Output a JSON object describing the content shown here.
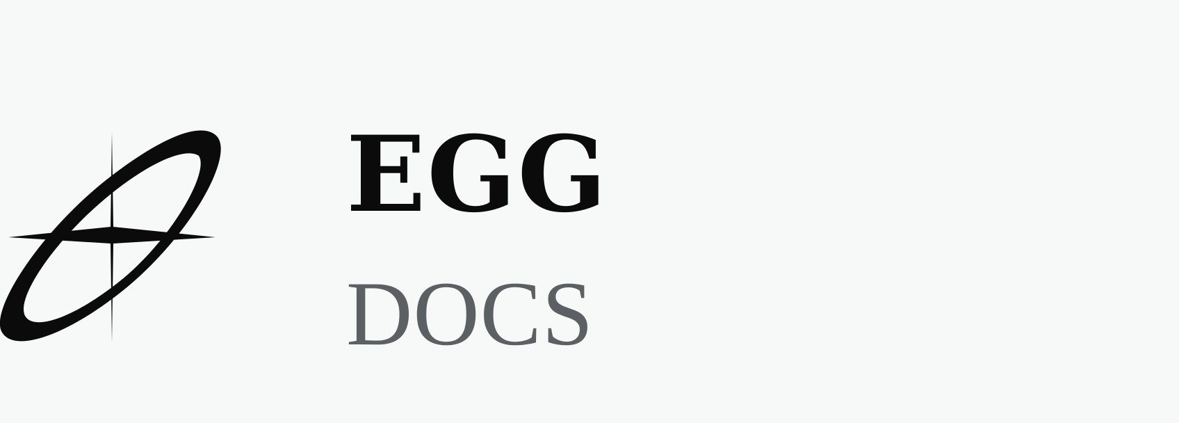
{
  "brand": {
    "name": "EGG",
    "subtitle": "DOCS"
  },
  "icons": {
    "logo": "orbit-star-icon"
  },
  "colors": {
    "background": "#f7f8f8",
    "mark": "#0b0b0b",
    "name": "#0b0b0b",
    "subtitle": "#5d6063"
  }
}
